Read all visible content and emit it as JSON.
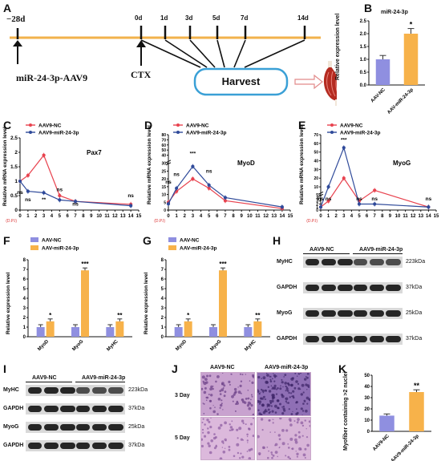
{
  "panels": {
    "A": {
      "letter": "A",
      "timeline": {
        "start_label": "−28d",
        "ticks": [
          "0d",
          "1d",
          "3d",
          "5d",
          "7d",
          "14d"
        ],
        "left_label": "miR-24-3p-AAV9",
        "cts_label": "CTX",
        "harvest_label": "Harvest"
      }
    },
    "B": {
      "letter": "B",
      "title": "miR-24-3p",
      "ylabel": "Relative expression level",
      "sig": "*",
      "chart_data": {
        "type": "bar",
        "categories": [
          "AAV-NC",
          "AAV-miR-24-3p"
        ],
        "values": [
          1.0,
          2.0
        ],
        "errors": [
          0.15,
          0.2
        ],
        "ylim": [
          0,
          2.5
        ],
        "yticks": [
          "0.0",
          "0.5",
          "1.0",
          "1.5",
          "2.0",
          "2.5"
        ],
        "colors": [
          "#8f8fe0",
          "#f7b24a"
        ]
      }
    },
    "C": {
      "letter": "C",
      "title": "Pax7",
      "ylabel": "Relative mRNA expression level",
      "legend": [
        "AAV9-NC",
        "AAV9-miR-24-3p"
      ],
      "xlabel": "(D.P.I)",
      "chart_data": {
        "type": "line",
        "x": [
          0,
          1,
          3,
          5,
          7,
          14
        ],
        "series": [
          {
            "name": "AAV9-NC",
            "color": "#e8434f",
            "values": [
              1.0,
              1.2,
              1.9,
              0.5,
              0.3,
              0.2
            ]
          },
          {
            "name": "AAV9-miR-24-3p",
            "color": "#2f4a9a",
            "values": [
              1.0,
              0.65,
              0.6,
              0.35,
              0.3,
              0.15
            ]
          }
        ],
        "ylim": [
          0,
          2.5
        ],
        "yticks": [
          "0",
          "0.5",
          "1",
          "1.5",
          "2",
          "2.5"
        ],
        "xticks": [
          "0",
          "1",
          "2",
          "3",
          "4",
          "5",
          "6",
          "7",
          "8",
          "9",
          "10",
          "11",
          "12",
          "13",
          "14",
          "15"
        ],
        "annotations": [
          "ns",
          "ns",
          "**",
          "ns",
          "ns",
          "ns"
        ]
      }
    },
    "D": {
      "letter": "D",
      "title": "MyoD",
      "ylabel": "Relative mRNA expression level",
      "legend": [
        "AAV9-NC",
        "AAV9-miR-24-3p"
      ],
      "xlabel": "(D.P.I)",
      "chart_data": {
        "type": "line",
        "x": [
          0,
          1,
          3,
          5,
          7,
          14
        ],
        "series": [
          {
            "name": "AAV9-NC",
            "color": "#e8434f",
            "values": [
              5,
              12,
              20,
              14,
              6,
              1
            ]
          },
          {
            "name": "AAV9-miR-24-3p",
            "color": "#2f4a9a",
            "values": [
              4,
              14,
              28,
              16,
              8,
              2
            ]
          }
        ],
        "ylim": [
          0,
          80
        ],
        "yticks": [
          "0",
          "5",
          "10",
          "15",
          "20",
          "25",
          "30",
          "40",
          "50",
          "60",
          "70",
          "80"
        ],
        "xticks": [
          "0",
          "1",
          "2",
          "3",
          "4",
          "5",
          "6",
          "7",
          "8",
          "9",
          "10",
          "11",
          "12",
          "13",
          "14",
          "15"
        ],
        "annotations": [
          "ns",
          "ns",
          "***",
          "ns"
        ]
      }
    },
    "E": {
      "letter": "E",
      "title": "MyoG",
      "ylabel": "Relative mRNA expression level",
      "legend": [
        "AAV9-NC",
        "AAV9-miR-24-3p"
      ],
      "xlabel": "(D.P.I)",
      "chart_data": {
        "type": "line",
        "x": [
          0,
          1,
          3,
          5,
          7,
          14
        ],
        "series": [
          {
            "name": "AAV9-NC",
            "color": "#e8434f",
            "values": [
              1,
              3,
              20,
              3,
              6,
              1
            ]
          },
          {
            "name": "AAV9-miR-24-3p",
            "color": "#2f4a9a",
            "values": [
              1,
              10,
              55,
              2,
              2,
              1
            ]
          }
        ],
        "ylim": [
          0,
          70
        ],
        "yticks": [
          "0",
          "1",
          "2",
          "3",
          "4",
          "5",
          "10",
          "20",
          "30",
          "40",
          "50",
          "60",
          "70"
        ],
        "xticks": [
          "0",
          "1",
          "2",
          "3",
          "4",
          "5",
          "6",
          "7",
          "8",
          "9",
          "10",
          "11",
          "12",
          "13",
          "14",
          "15"
        ],
        "annotations": [
          "ns",
          "ns",
          "***",
          "ns",
          "ns",
          "ns"
        ]
      }
    },
    "F": {
      "letter": "F",
      "ylabel": "Relative expression level",
      "legend": [
        "AAV-NC",
        "AAV-miR-24-3p"
      ],
      "chart_data": {
        "type": "bar",
        "categories": [
          "MyoD",
          "MyoG",
          "MyHC"
        ],
        "series": [
          {
            "name": "AAV-NC",
            "color": "#8f8fe0",
            "values": [
              1.0,
              1.0,
              1.0
            ]
          },
          {
            "name": "AAV-miR-24-3p",
            "color": "#f7b24a",
            "values": [
              1.6,
              6.9,
              1.6
            ]
          }
        ],
        "ylim": [
          0,
          8
        ],
        "yticks": [
          "0",
          "1",
          "2",
          "3",
          "4",
          "5",
          "6",
          "7",
          "8"
        ],
        "sig": [
          "*",
          "***",
          "**"
        ]
      }
    },
    "G": {
      "letter": "G",
      "ylabel": "Relative expression level",
      "legend": [
        "AAV-NC",
        "AAV-miR-24-3p"
      ],
      "chart_data": {
        "type": "bar",
        "categories": [
          "MyoD",
          "MyoG",
          "MyHC"
        ],
        "series": [
          {
            "name": "AAV-NC",
            "color": "#8f8fe0",
            "values": [
              1.0,
              1.0,
              1.0
            ]
          },
          {
            "name": "AAV-miR-24-3p",
            "color": "#f7b24a",
            "values": [
              1.6,
              6.9,
              1.6
            ]
          }
        ],
        "ylim": [
          0,
          8
        ],
        "yticks": [
          "0",
          "1",
          "2",
          "3",
          "4",
          "5",
          "6",
          "7",
          "8"
        ],
        "sig": [
          "*",
          "***",
          "**"
        ]
      }
    },
    "H": {
      "letter": "H",
      "groups": [
        "AAV9-NC",
        "AAV9-miR-24-3p"
      ],
      "rows": [
        {
          "name": "MyHC",
          "size": "223kDa"
        },
        {
          "name": "GAPDH",
          "size": "37kDa"
        },
        {
          "name": "MyoG",
          "size": "25kDa"
        },
        {
          "name": "GAPDH",
          "size": "37kDa"
        }
      ]
    },
    "I": {
      "letter": "I",
      "groups": [
        "AAV9-NC",
        "AAV9-miR-24-3p"
      ],
      "rows": [
        {
          "name": "MyHC",
          "size": "223kDa"
        },
        {
          "name": "GAPDH",
          "size": "37kDa"
        },
        {
          "name": "MyoG",
          "size": "25kDa"
        },
        {
          "name": "GAPDH",
          "size": "37kDa"
        }
      ]
    },
    "J": {
      "letter": "J",
      "columns": [
        "AAV9-NC",
        "AAV9-miR-24-3p"
      ],
      "rows": [
        "3 Day",
        "5 Day"
      ]
    },
    "K": {
      "letter": "K",
      "ylabel": "Myofiber containing >2 nuclei",
      "sig": "**",
      "chart_data": {
        "type": "bar",
        "categories": [
          "AAV9-NC",
          "AAV9-miR-24-3p"
        ],
        "values": [
          14,
          35
        ],
        "errors": [
          1.5,
          2
        ],
        "ylim": [
          0,
          50
        ],
        "yticks": [
          "0",
          "10",
          "20",
          "30",
          "40",
          "50"
        ],
        "colors": [
          "#8f8fe0",
          "#f7b24a"
        ]
      }
    }
  }
}
